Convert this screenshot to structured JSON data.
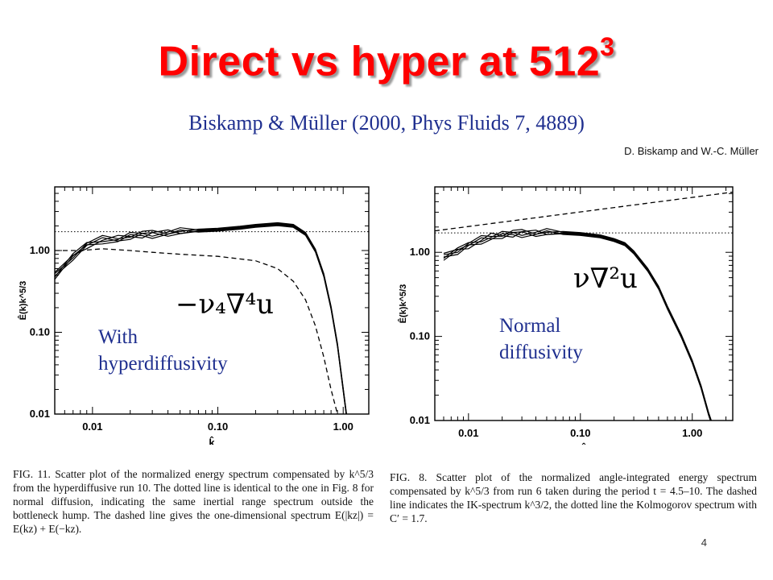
{
  "title": "Direct vs hyper at 512",
  "title_sup": "3",
  "subtitle": "Biskamp & Müller (2000, Phys Fluids 7, 4889)",
  "authors": "D. Biskamp and W.-C. Müller",
  "left_label_1": "With",
  "left_label_2": "hyperdiffusivity",
  "left_formula": "−ν₄∇⁴u",
  "right_label_1": "Normal",
  "right_label_2": "diffusivity",
  "right_formula": "ν∇²u",
  "left_caption": "FIG. 11. Scatter plot of the normalized energy spectrum compensated by k^5/3 from the hyperdiffusive run 10. The dotted line is identical to the one in Fig. 8 for normal diffusion, indicating the same inertial range spectrum outside the bottleneck hump. The dashed line gives the one-dimensional spectrum E(|kz|) = E(kz) + E(−kz).",
  "right_caption": "FIG. 8. Scatter plot of the normalized angle-integrated energy spectrum compensated by k^5/3 from run 6 taken during the period t = 4.5–10. The dashed line indicates the IK-spectrum k^3/2, the dotted line the Kolmogorov spectrum with C′ = 1.7.",
  "page_number": "4",
  "chart_data": [
    {
      "type": "line",
      "xscale": "log",
      "yscale": "log",
      "xlim": [
        0.005,
        1.6
      ],
      "ylim": [
        0.01,
        6.0
      ],
      "xticks": [
        "0.01",
        "0.10",
        "1.00"
      ],
      "yticks": [
        "0.01",
        "0.10",
        "1.00"
      ],
      "xlabel": "k̂",
      "ylabel": "Ê(k)k^5/3",
      "dotted_level": 1.7,
      "series": [
        {
          "style": "solid-bundle",
          "x": [
            0.005,
            0.007,
            0.009,
            0.012,
            0.016,
            0.02,
            0.025,
            0.03,
            0.04,
            0.05,
            0.07,
            0.1,
            0.15,
            0.2,
            0.3,
            0.4,
            0.5,
            0.6,
            0.7,
            0.8,
            0.9,
            1.0,
            1.08
          ],
          "y": [
            0.5,
            0.85,
            1.15,
            1.35,
            1.4,
            1.5,
            1.55,
            1.6,
            1.65,
            1.7,
            1.75,
            1.8,
            1.9,
            2.0,
            2.1,
            2.0,
            1.6,
            1.0,
            0.5,
            0.2,
            0.07,
            0.02,
            0.008
          ]
        },
        {
          "style": "dashed",
          "x": [
            0.005,
            0.008,
            0.012,
            0.02,
            0.03,
            0.05,
            0.1,
            0.2,
            0.3,
            0.4,
            0.5,
            0.6,
            0.7,
            0.8,
            0.9,
            0.95
          ],
          "y": [
            1.0,
            1.0,
            1.05,
            1.0,
            0.95,
            0.9,
            0.85,
            0.75,
            0.6,
            0.42,
            0.25,
            0.12,
            0.05,
            0.02,
            0.01,
            0.008
          ]
        }
      ]
    },
    {
      "type": "line",
      "xscale": "log",
      "yscale": "log",
      "xlim": [
        0.005,
        2.3
      ],
      "ylim": [
        0.01,
        6.0
      ],
      "xticks": [
        "0.01",
        "0.10",
        "1.00"
      ],
      "yticks": [
        "0.01",
        "0.10",
        "1.00"
      ],
      "xlabel": "k̂",
      "ylabel": "Ê(k)k^5/3",
      "dotted_level": 1.7,
      "series": [
        {
          "style": "solid-bundle",
          "x": [
            0.006,
            0.008,
            0.01,
            0.013,
            0.016,
            0.02,
            0.025,
            0.03,
            0.04,
            0.05,
            0.07,
            0.1,
            0.15,
            0.2,
            0.25,
            0.3,
            0.4,
            0.5,
            0.6,
            0.8,
            1.0,
            1.2,
            1.4,
            1.55
          ],
          "y": [
            0.9,
            1.05,
            1.2,
            1.4,
            1.55,
            1.6,
            1.65,
            1.7,
            1.7,
            1.72,
            1.7,
            1.65,
            1.55,
            1.4,
            1.25,
            1.0,
            0.62,
            0.38,
            0.22,
            0.1,
            0.05,
            0.025,
            0.012,
            0.008
          ]
        },
        {
          "style": "dashed",
          "x": [
            0.005,
            2.3
          ],
          "y": [
            1.8,
            5.2
          ]
        }
      ]
    }
  ]
}
